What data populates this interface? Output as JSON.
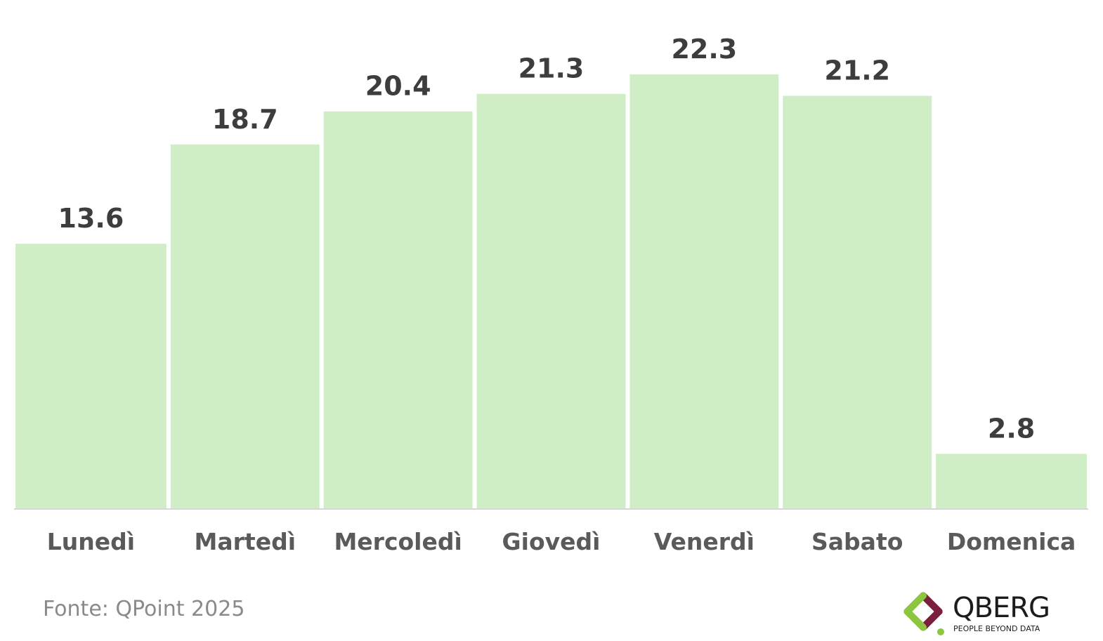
{
  "chart_data": {
    "type": "bar",
    "categories": [
      "Lunedì",
      "Martedì",
      "Mercoledì",
      "Giovedì",
      "Venerdì",
      "Sabato",
      "Domenica"
    ],
    "values": [
      13.6,
      18.7,
      20.4,
      21.3,
      22.3,
      21.2,
      2.8
    ],
    "data_labels": [
      "13.6",
      "18.7",
      "20.4",
      "21.3",
      "22.3",
      "21.2",
      "2.8"
    ],
    "title": "",
    "xlabel": "",
    "ylabel": "",
    "ylim": [
      0,
      22.3
    ],
    "grid": false,
    "legend": "none",
    "bar_color": "#cfeec6",
    "label_color": "#3d3d3d",
    "category_color": "#5a5a5a",
    "axis_color": "#d6d6d6"
  },
  "source": "Fonte: QPoint 2025",
  "logo": {
    "name": "QBERG",
    "tagline": "PEOPLE BEYOND DATA",
    "icon": "qberg-diamond-icon",
    "colors": [
      "#7a1f3d",
      "#8cc63f"
    ]
  }
}
